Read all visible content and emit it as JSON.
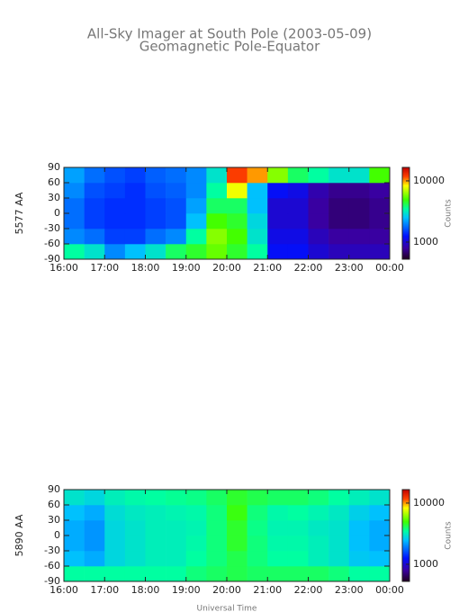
{
  "chart_data": [
    {
      "type": "heatmap",
      "title": "All-Sky Imager at South Pole (2003-05-09)",
      "subtitle": "Geomagnetic Pole-Equator",
      "ylabel": "5577 AA",
      "colorbar_label": "Counts",
      "xbins": [
        16,
        16.5,
        17,
        17.5,
        18,
        18.5,
        19,
        19.5,
        20,
        20.5,
        21,
        21.5,
        22,
        22.5,
        23,
        23.5,
        24
      ],
      "ybins": [
        -90,
        -60,
        -30,
        0,
        30,
        60,
        90
      ],
      "values": [
        [
          3500,
          3000,
          2000,
          2500,
          3000,
          4000,
          4500,
          5500,
          4500,
          3500,
          1200,
          1200,
          1000,
          900,
          900,
          900
        ],
        [
          2000,
          1800,
          1500,
          1500,
          1800,
          2000,
          3500,
          6000,
          5000,
          3000,
          1100,
          1100,
          900,
          800,
          800,
          800
        ],
        [
          1800,
          1500,
          1400,
          1400,
          1500,
          1600,
          2500,
          5000,
          4500,
          2800,
          1000,
          1000,
          800,
          700,
          700,
          750
        ],
        [
          1800,
          1500,
          1400,
          1400,
          1500,
          1600,
          2200,
          4000,
          4000,
          2500,
          1000,
          1000,
          800,
          700,
          700,
          750
        ],
        [
          2000,
          1600,
          1500,
          1400,
          1600,
          1700,
          2000,
          3500,
          8000,
          2500,
          1200,
          1100,
          850,
          750,
          750,
          800
        ],
        [
          2200,
          1800,
          1600,
          1500,
          1700,
          1800,
          2000,
          3000,
          12000,
          10000,
          6000,
          4000,
          3500,
          3000,
          3000,
          5000
        ]
      ],
      "xlim": [
        16,
        24
      ],
      "xticks": [
        {
          "value": 16,
          "label": "16:00"
        },
        {
          "value": 17,
          "label": "17:00"
        },
        {
          "value": 18,
          "label": "18:00"
        },
        {
          "value": 19,
          "label": "19:00"
        },
        {
          "value": 20,
          "label": "20:00"
        },
        {
          "value": 21,
          "label": "21:00"
        },
        {
          "value": 22,
          "label": "22:00"
        },
        {
          "value": 23,
          "label": "23:00"
        },
        {
          "value": 24,
          "label": "00:00"
        }
      ],
      "ylim": [
        -90,
        90
      ],
      "yticks": [
        -90,
        -60,
        -30,
        0,
        30,
        60,
        90
      ],
      "clim": [
        525,
        16600
      ],
      "cticks": [
        1000,
        10000
      ],
      "cscale": "log"
    },
    {
      "type": "heatmap",
      "ylabel": "5890 AA",
      "xlabel": "Universal Time",
      "colorbar_label": "Counts",
      "xbins": [
        16,
        16.5,
        17,
        17.5,
        18,
        18.5,
        19,
        19.5,
        20,
        20.5,
        21,
        21.5,
        22,
        22.5,
        23,
        23.5,
        24
      ],
      "ybins": [
        -90,
        -60,
        -30,
        0,
        30,
        60,
        90
      ],
      "values": [
        [
          3500,
          3500,
          3500,
          3500,
          3500,
          3500,
          3800,
          4000,
          4200,
          4000,
          4000,
          4000,
          4000,
          3800,
          3500,
          3500
        ],
        [
          2500,
          2300,
          2800,
          3000,
          3200,
          3200,
          3500,
          3800,
          4200,
          3800,
          3500,
          3500,
          3200,
          3000,
          2600,
          2500
        ],
        [
          2300,
          2100,
          2800,
          3000,
          3200,
          3200,
          3400,
          3800,
          4500,
          3800,
          3400,
          3400,
          3200,
          3000,
          2500,
          2300
        ],
        [
          2300,
          2100,
          2800,
          3000,
          3200,
          3200,
          3300,
          3800,
          4500,
          3700,
          3300,
          3300,
          3100,
          3000,
          2500,
          2300
        ],
        [
          2500,
          2300,
          2900,
          3100,
          3200,
          3300,
          3400,
          3800,
          4800,
          3800,
          3400,
          3500,
          3300,
          3100,
          2700,
          2500
        ],
        [
          3000,
          2800,
          3200,
          3400,
          3500,
          3600,
          3700,
          4000,
          4500,
          4200,
          4000,
          4000,
          3800,
          3500,
          3200,
          3000
        ]
      ],
      "xlim": [
        16,
        24
      ],
      "xticks": [
        {
          "value": 16,
          "label": "16:00"
        },
        {
          "value": 17,
          "label": "17:00"
        },
        {
          "value": 18,
          "label": "18:00"
        },
        {
          "value": 19,
          "label": "19:00"
        },
        {
          "value": 20,
          "label": "20:00"
        },
        {
          "value": 21,
          "label": "21:00"
        },
        {
          "value": 22,
          "label": "22:00"
        },
        {
          "value": 23,
          "label": "23:00"
        },
        {
          "value": 24,
          "label": "00:00"
        }
      ],
      "ylim": [
        -90,
        90
      ],
      "yticks": [
        -90,
        -60,
        -30,
        0,
        30,
        60,
        90
      ],
      "clim": [
        525,
        16600
      ],
      "cticks": [
        1000,
        10000
      ],
      "cscale": "log"
    }
  ]
}
